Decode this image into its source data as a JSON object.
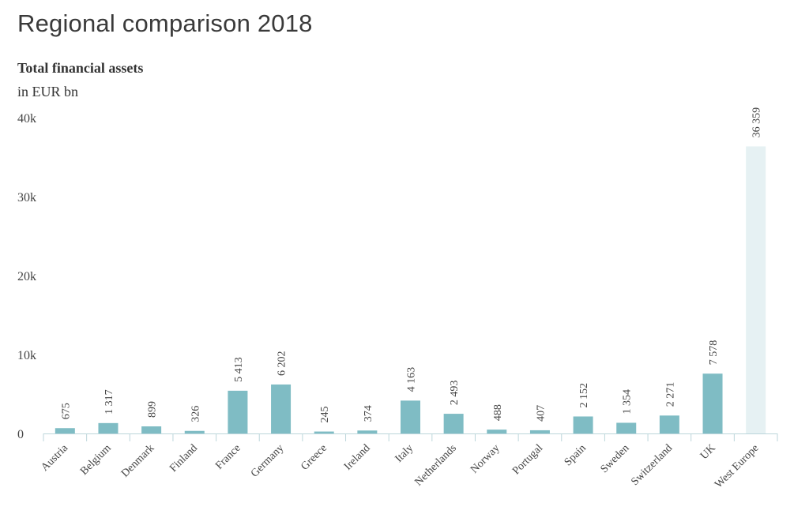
{
  "header": {
    "title": "Regional comparison 2018"
  },
  "colors": {
    "bar": "#7fbcc4",
    "highlight": "#e6f1f3",
    "axis": "#bcd6db",
    "text": "#444444"
  },
  "chart_data": {
    "type": "bar",
    "title": "Total financial assets",
    "subtitle": "in EUR bn",
    "xlabel": "",
    "ylabel": "",
    "ylim": [
      0,
      40000
    ],
    "yticks": [
      0,
      10000,
      20000,
      30000,
      40000
    ],
    "ytick_labels": [
      "0",
      "10k",
      "20k",
      "30k",
      "40k"
    ],
    "categories": [
      "Austria",
      "Belgium",
      "Denmark",
      "Finland",
      "France",
      "Germany",
      "Greece",
      "Ireland",
      "Italy",
      "Netherlands",
      "Norway",
      "Portugal",
      "Spain",
      "Sweden",
      "Switzerland",
      "UK",
      "West Europe"
    ],
    "values": [
      675,
      1317,
      899,
      326,
      5413,
      6202,
      245,
      374,
      4163,
      2493,
      488,
      407,
      2152,
      1354,
      2271,
      7578,
      36359
    ],
    "value_labels": [
      "675",
      "1 317",
      "899",
      "326",
      "5 413",
      "6 202",
      "245",
      "374",
      "4 163",
      "2 493",
      "488",
      "407",
      "2 152",
      "1 354",
      "2 271",
      "7 578",
      "36 359"
    ],
    "highlight_category": "West Europe"
  }
}
